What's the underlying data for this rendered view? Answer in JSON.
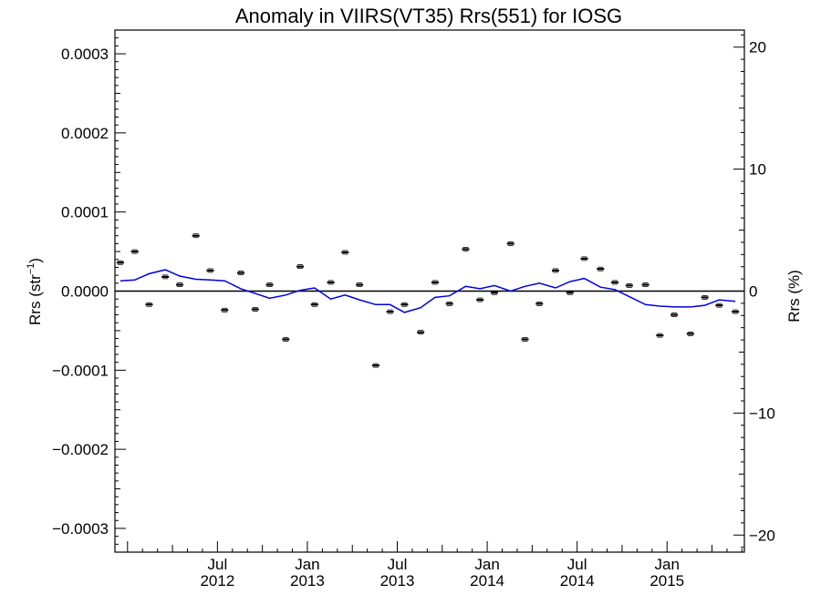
{
  "chart_data": {
    "type": "scatter",
    "title": "Anomaly in VIIRS(VT35) Rrs(551) for IOSG",
    "ylabel_left_base": "Rrs (str",
    "ylabel_left_sup": "−1",
    "ylabel_left_end": ")",
    "ylabel_right": "Rrs (%)",
    "xlim": [
      2011.93,
      2015.43
    ],
    "ylim": [
      -0.00033,
      0.00033
    ],
    "ylim_right": [
      -21.4,
      21.4
    ],
    "grid": false,
    "zero_line": true,
    "x_ticks": [
      {
        "x": 2012.5,
        "month": "Jul",
        "year": "2012"
      },
      {
        "x": 2013.0,
        "month": "Jan",
        "year": "2013"
      },
      {
        "x": 2013.5,
        "month": "Jul",
        "year": "2013"
      },
      {
        "x": 2014.0,
        "month": "Jan",
        "year": "2014"
      },
      {
        "x": 2014.5,
        "month": "Jul",
        "year": "2014"
      },
      {
        "x": 2015.0,
        "month": "Jan",
        "year": "2015"
      }
    ],
    "y_ticks_left": [
      {
        "v": 0.0003,
        "label": "0.0003"
      },
      {
        "v": 0.0002,
        "label": "0.0002"
      },
      {
        "v": 0.0001,
        "label": "0.0001"
      },
      {
        "v": 0.0,
        "label": "0.0000"
      },
      {
        "v": -0.0001,
        "label": "−0.0001"
      },
      {
        "v": -0.0002,
        "label": "−0.0002"
      },
      {
        "v": -0.0003,
        "label": "−0.0003"
      }
    ],
    "y_ticks_right": [
      {
        "v": 20,
        "label": "20"
      },
      {
        "v": 10,
        "label": "10"
      },
      {
        "v": 0,
        "label": "0"
      },
      {
        "v": -10,
        "label": "−10"
      },
      {
        "v": -20,
        "label": "−20"
      }
    ],
    "series": [
      {
        "kind": "monthly_points",
        "color": "#000000",
        "x": [
          2011.96,
          2012.04,
          2012.12,
          2012.21,
          2012.29,
          2012.38,
          2012.46,
          2012.54,
          2012.63,
          2012.71,
          2012.79,
          2012.88,
          2012.96,
          2013.04,
          2013.13,
          2013.21,
          2013.29,
          2013.38,
          2013.46,
          2013.54,
          2013.63,
          2013.71,
          2013.79,
          2013.88,
          2013.96,
          2014.04,
          2014.13,
          2014.21,
          2014.29,
          2014.38,
          2014.46,
          2014.54,
          2014.63,
          2014.71,
          2014.79,
          2014.88,
          2014.96,
          2015.04,
          2015.13,
          2015.21,
          2015.29,
          2015.38
        ],
        "y": [
          3.6e-05,
          5e-05,
          -1.7e-05,
          1.8e-05,
          8e-06,
          7e-05,
          2.6e-05,
          -2.4e-05,
          2.3e-05,
          -2.3e-05,
          8e-06,
          -6.1e-05,
          3.1e-05,
          -1.7e-05,
          1.1e-05,
          4.9e-05,
          8e-06,
          -9.4e-05,
          -2.6e-05,
          -1.7e-05,
          -5.2e-05,
          1.1e-05,
          -1.6e-05,
          5.3e-05,
          -1.1e-05,
          -2e-06,
          6e-05,
          -6.1e-05,
          -1.6e-05,
          2.6e-05,
          -2e-06,
          4.1e-05,
          2.8e-05,
          1.1e-05,
          7e-06,
          8e-06,
          -5.6e-05,
          -3e-05,
          -5.4e-05,
          -8e-06,
          -1.8e-05,
          -2.6e-05
        ]
      },
      {
        "kind": "smoothed_line",
        "color": "#0000dd",
        "x": [
          2011.96,
          2012.04,
          2012.12,
          2012.21,
          2012.29,
          2012.38,
          2012.46,
          2012.54,
          2012.63,
          2012.71,
          2012.79,
          2012.88,
          2012.96,
          2013.04,
          2013.13,
          2013.21,
          2013.29,
          2013.38,
          2013.46,
          2013.54,
          2013.63,
          2013.71,
          2013.79,
          2013.88,
          2013.96,
          2014.04,
          2014.13,
          2014.21,
          2014.29,
          2014.38,
          2014.46,
          2014.54,
          2014.63,
          2014.71,
          2014.79,
          2014.88,
          2014.96,
          2015.04,
          2015.13,
          2015.21,
          2015.29,
          2015.38
        ],
        "y": [
          1.3e-05,
          1.4e-05,
          2.2e-05,
          2.7e-05,
          1.9e-05,
          1.5e-05,
          1.4e-05,
          1.3e-05,
          3e-06,
          -3e-06,
          -9e-06,
          -5e-06,
          1e-06,
          4e-06,
          -1e-05,
          -5e-06,
          -1.1e-05,
          -1.7e-05,
          -1.7e-05,
          -2.7e-05,
          -2.1e-05,
          -8e-06,
          -6e-06,
          6e-06,
          3e-06,
          7e-06,
          0.0,
          6e-06,
          1e-05,
          4e-06,
          1.2e-05,
          1.6e-05,
          5e-06,
          2e-06,
          -7e-06,
          -1.7e-05,
          -1.9e-05,
          -2e-05,
          -2e-05,
          -1.8e-05,
          -1.1e-05,
          -1.3e-05
        ]
      }
    ]
  }
}
